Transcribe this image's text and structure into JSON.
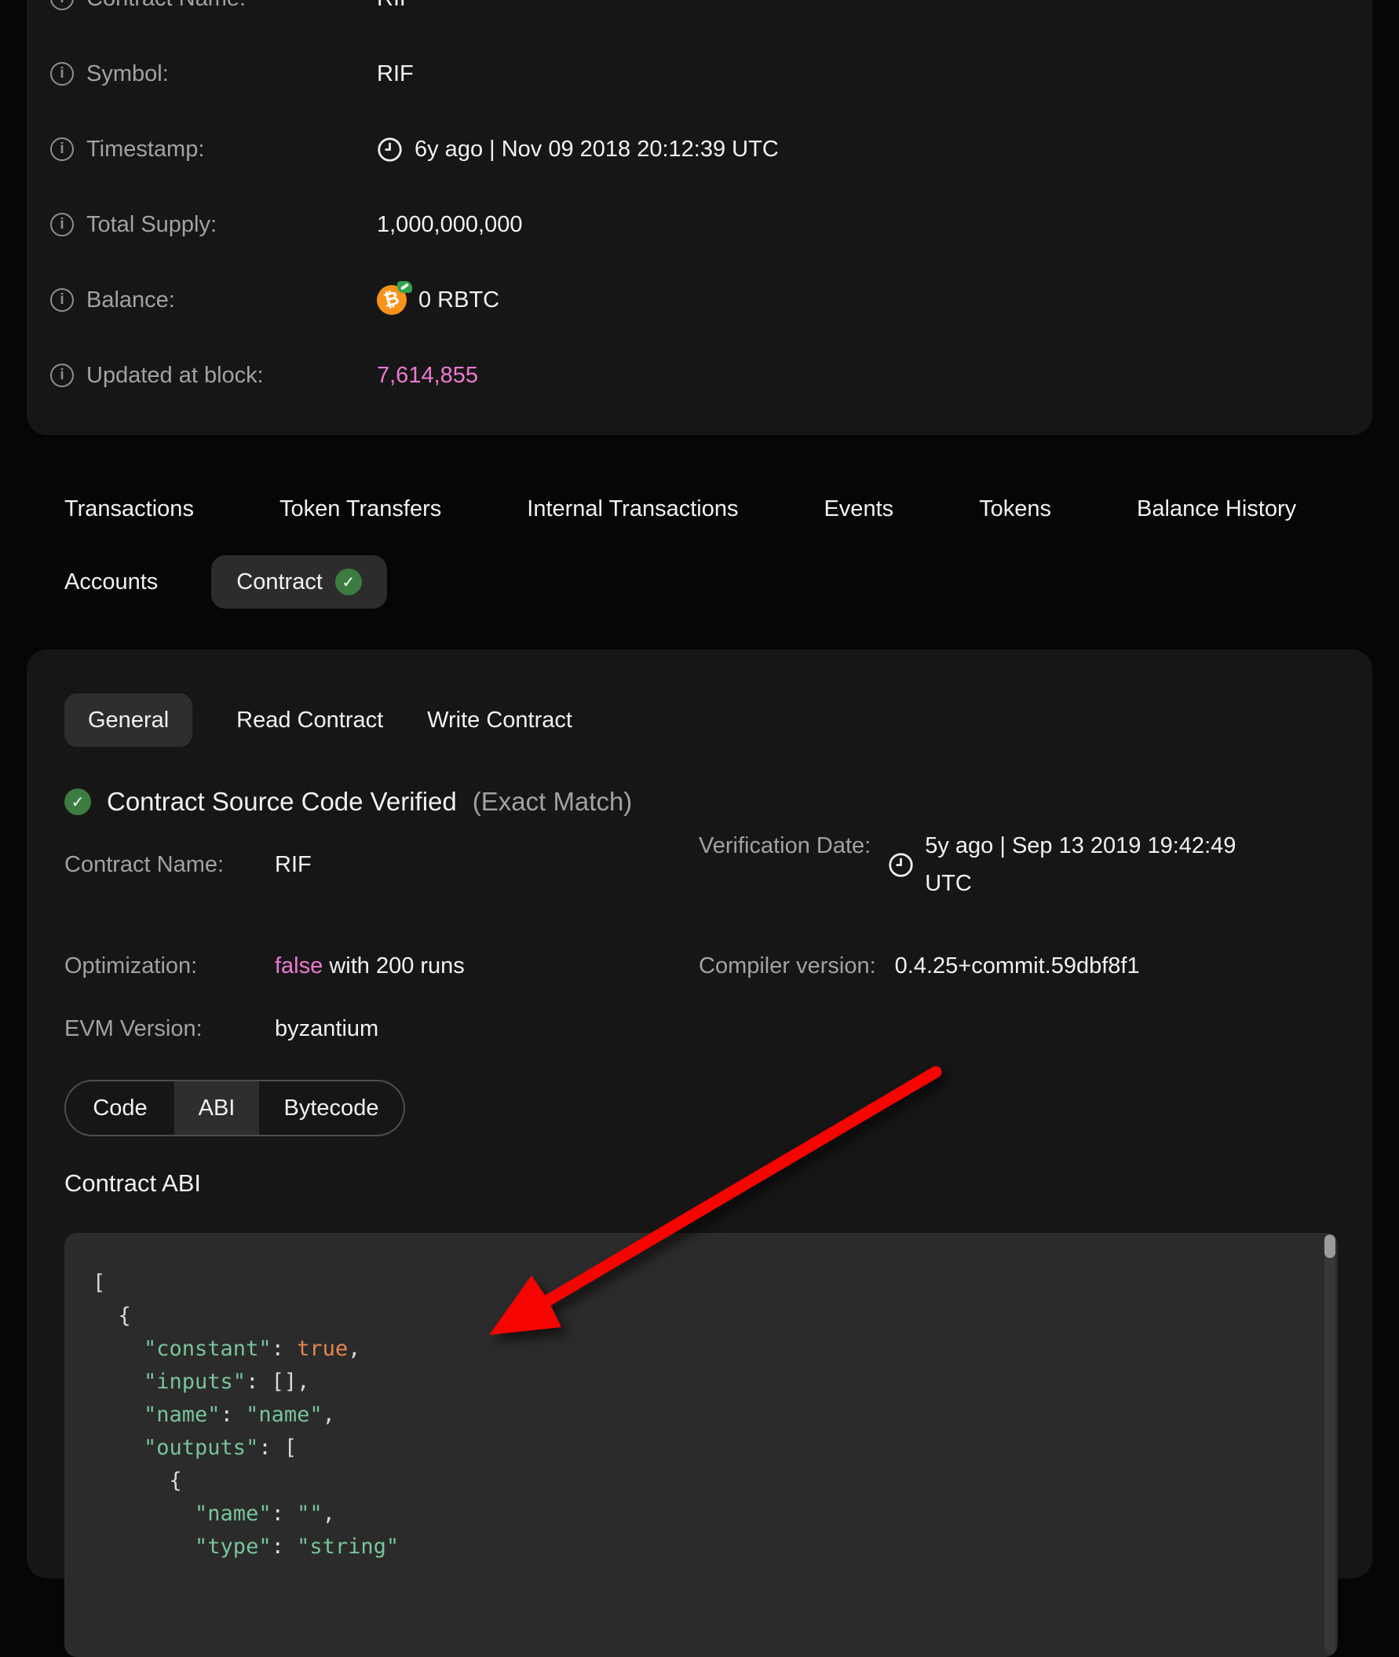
{
  "colors": {
    "page_bg": "#060606",
    "card_bg": "#161616",
    "pill_bg": "#2c2c2c",
    "accent_pink": "#ee79d3",
    "check_green": "#3c7c40",
    "rbtc_orange": "#f7931a",
    "code_bg": "#2b2b2b",
    "code_green": "#79c49a",
    "code_orange": "#e9854f",
    "arrow_red": "#f50400"
  },
  "token_info": {
    "rows": [
      {
        "label": "Contract Name:",
        "value": "RIF"
      },
      {
        "label": "Symbol:",
        "value": "RIF"
      },
      {
        "label": "Timestamp:",
        "value": "6y ago | Nov 09 2018 20:12:39 UTC"
      },
      {
        "label": "Total Supply:",
        "value": "1,000,000,000"
      },
      {
        "label": "Balance:",
        "value": "0 RBTC"
      },
      {
        "label": "Updated at block:",
        "value": "7,614,855"
      }
    ]
  },
  "nav": {
    "tabs": [
      "Transactions",
      "Token Transfers",
      "Internal Transactions",
      "Events",
      "Tokens",
      "Balance History"
    ],
    "accounts": "Accounts",
    "contract": "Contract"
  },
  "contract_panel": {
    "tabs": {
      "general": "General",
      "read": "Read Contract",
      "write": "Write Contract"
    },
    "verified": {
      "title": "Contract Source Code Verified",
      "match": "(Exact Match)"
    },
    "details": {
      "contract_name_label": "Contract Name:",
      "contract_name": "RIF",
      "verification_date_label": "Verification Date:",
      "verification_date": "5y ago | Sep 13 2019 19:42:49 UTC",
      "optimization_label": "Optimization:",
      "optimization_value": "false",
      "optimization_suffix": " with 200 runs",
      "compiler_label": "Compiler version:",
      "compiler_value": "0.4.25+commit.59dbf8f1",
      "evm_label": "EVM Version:",
      "evm_value": "byzantium"
    },
    "code_tabs": [
      "Code",
      "ABI",
      "Bytecode"
    ],
    "abi_heading": "Contract ABI"
  },
  "contract_abi": {
    "lines": [
      [
        [
          "p",
          "["
        ]
      ],
      [
        [
          "p",
          "  {"
        ]
      ],
      [
        [
          "g",
          "    \"constant\""
        ],
        [
          "p",
          ": "
        ],
        [
          "o",
          "true"
        ],
        [
          "p",
          ","
        ]
      ],
      [
        [
          "g",
          "    \"inputs\""
        ],
        [
          "p",
          ": [],"
        ]
      ],
      [
        [
          "g",
          "    \"name\""
        ],
        [
          "p",
          ": "
        ],
        [
          "g",
          "\"name\""
        ],
        [
          "p",
          ","
        ]
      ],
      [
        [
          "g",
          "    \"outputs\""
        ],
        [
          "p",
          ": ["
        ]
      ],
      [
        [
          "p",
          "      {"
        ]
      ],
      [
        [
          "g",
          "        \"name\""
        ],
        [
          "p",
          ": "
        ],
        [
          "g",
          "\"\""
        ],
        [
          "p",
          ","
        ]
      ],
      [
        [
          "g",
          "        \"type\""
        ],
        [
          "p",
          ": "
        ],
        [
          "g",
          "\"string\""
        ]
      ]
    ]
  }
}
